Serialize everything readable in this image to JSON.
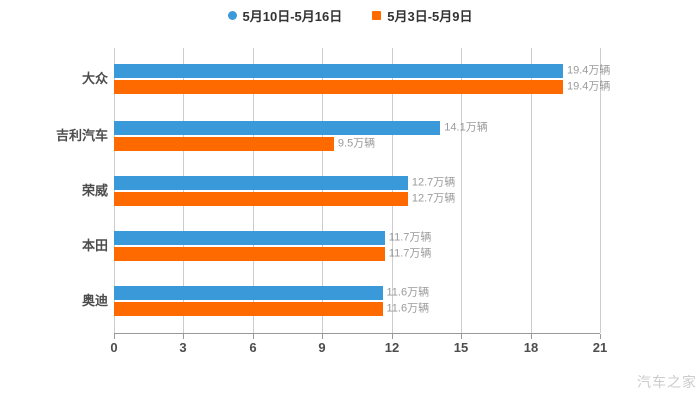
{
  "legend": {
    "items": [
      {
        "label": "5月10日-5月16日",
        "color": "#3A99D8",
        "shape": "circle"
      },
      {
        "label": "5月3日-5月9日",
        "color": "#FF6A00",
        "shape": "square"
      }
    ]
  },
  "chart_data": {
    "type": "bar",
    "orientation": "horizontal",
    "title": "",
    "xlabel": "",
    "ylabel": "",
    "categories": [
      "大众",
      "吉利汽车",
      "荣威",
      "本田",
      "奥迪"
    ],
    "series": [
      {
        "name": "5月10日-5月16日",
        "color": "#3A99D8",
        "values": [
          19.4,
          14.1,
          12.7,
          11.7,
          11.6
        ],
        "value_labels": [
          "19.4万辆",
          "14.1万辆",
          "12.7万辆",
          "11.7万辆",
          "11.6万辆"
        ]
      },
      {
        "name": "5月3日-5月9日",
        "color": "#FF6A00",
        "values": [
          19.4,
          9.5,
          12.7,
          11.7,
          11.6
        ],
        "value_labels": [
          "19.4万辆",
          "9.5万辆",
          "12.7万辆",
          "11.7万辆",
          "11.6万辆"
        ]
      }
    ],
    "xticks": [
      0,
      3,
      6,
      9,
      12,
      15,
      18,
      21
    ],
    "xlim": [
      0,
      21
    ],
    "grid": true,
    "legend_position": "top",
    "colors": {
      "gridline": "#cccccc",
      "axis_line": "#999999",
      "tick_text": "#4d4d4d",
      "legend_text": "#333333"
    }
  },
  "watermark": {
    "text": "汽车之家"
  }
}
